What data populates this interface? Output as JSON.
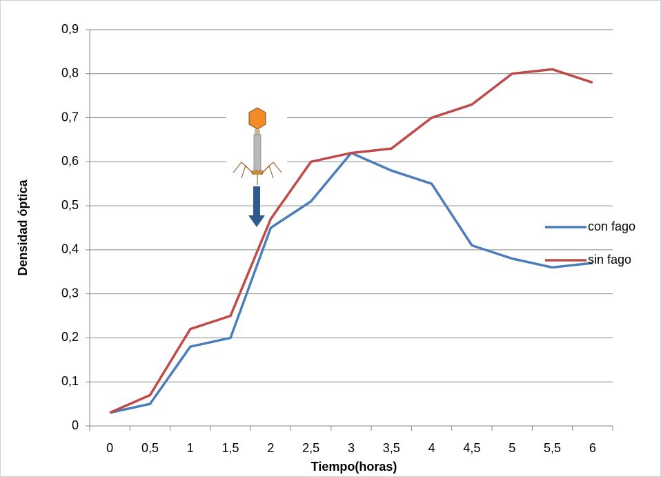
{
  "chart_data": {
    "type": "line",
    "x_label": "Tiempo(horas)",
    "y_label": "Densidad óptica",
    "categories": [
      "0",
      "0,5",
      "1",
      "1,5",
      "2",
      "2,5",
      "3",
      "3,5",
      "4",
      "4,5",
      "5",
      "5,5",
      "6"
    ],
    "series": [
      {
        "name": "con fago",
        "color": "#4a7ebb",
        "values": [
          0.03,
          0.05,
          0.18,
          0.2,
          0.45,
          0.51,
          0.62,
          0.58,
          0.55,
          0.41,
          0.38,
          0.36,
          0.37
        ]
      },
      {
        "name": "sin fago",
        "color": "#be4b48",
        "values": [
          0.03,
          0.07,
          0.22,
          0.25,
          0.47,
          0.6,
          0.62,
          0.63,
          0.7,
          0.73,
          0.8,
          0.81,
          0.78
        ]
      }
    ],
    "ylim": [
      0,
      0.9
    ],
    "yticks": [
      0,
      {
        "value": 0.1,
        "label": "0,1"
      },
      {
        "value": 0.2,
        "label": "0,2"
      },
      {
        "value": 0.3,
        "label": "0,3"
      },
      {
        "value": 0.4,
        "label": "0,4"
      },
      {
        "value": 0.5,
        "label": "0,5"
      },
      {
        "value": 0.6,
        "label": "0,6"
      },
      {
        "value": 0.7,
        "label": "0,7"
      },
      {
        "value": 0.8,
        "label": "0,8"
      },
      {
        "value": 0.9,
        "label": "0,9"
      }
    ],
    "grid": true,
    "legend": "right"
  }
}
